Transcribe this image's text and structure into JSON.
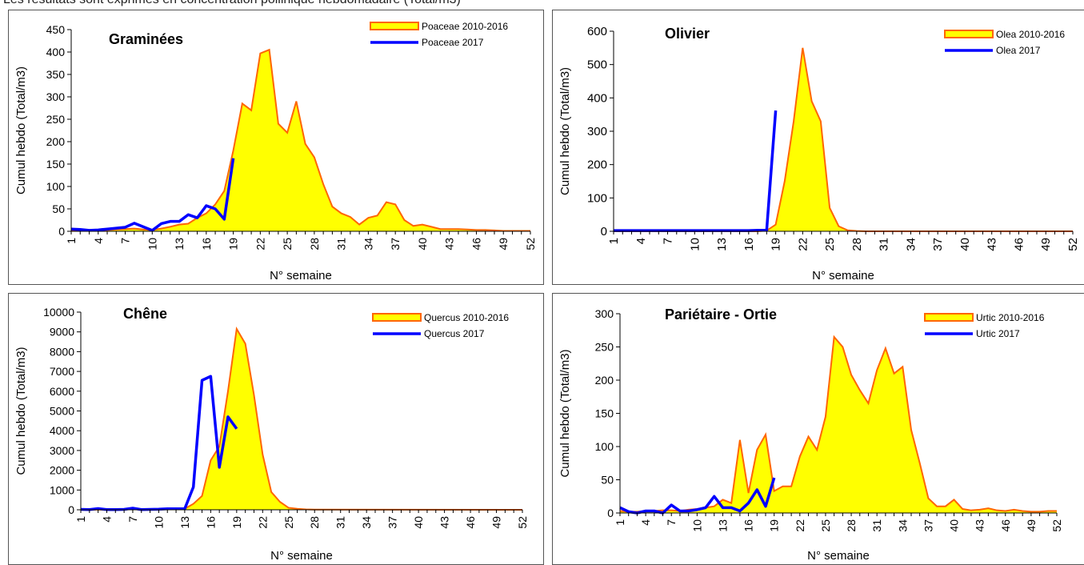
{
  "page": {
    "caption": "Les résultats sont exprimés en concentration pollinique hebdomadaire (Total/m3)"
  },
  "chart_data": [
    {
      "type": "area",
      "title": "Graminées",
      "xlabel": "N° semaine",
      "ylabel": "Cumul hebdo (Total/m3)",
      "ylim": [
        0,
        450
      ],
      "yticks": [
        0,
        50,
        100,
        150,
        200,
        250,
        300,
        350,
        400,
        450
      ],
      "xlim": [
        1,
        52
      ],
      "xticks": [
        1,
        4,
        7,
        10,
        13,
        16,
        19,
        22,
        25,
        28,
        31,
        34,
        37,
        40,
        43,
        46,
        49,
        52
      ],
      "legend_position": "top-right",
      "series": [
        {
          "name": "Poaceae 2010-2016",
          "kind": "area",
          "fill": "#FFFF00",
          "stroke": "#FF6600",
          "x": [
            1,
            2,
            3,
            4,
            5,
            6,
            7,
            8,
            9,
            10,
            11,
            12,
            13,
            14,
            15,
            16,
            17,
            18,
            19,
            20,
            21,
            22,
            23,
            24,
            25,
            26,
            27,
            28,
            29,
            30,
            31,
            32,
            33,
            34,
            35,
            36,
            37,
            38,
            39,
            40,
            41,
            42,
            43,
            44,
            45,
            46,
            47,
            48,
            49,
            50,
            51,
            52
          ],
          "values": [
            2,
            1,
            1,
            2,
            3,
            4,
            5,
            6,
            4,
            3,
            6,
            10,
            15,
            17,
            30,
            40,
            60,
            90,
            180,
            285,
            270,
            397,
            405,
            240,
            220,
            290,
            195,
            165,
            105,
            55,
            40,
            32,
            15,
            30,
            35,
            65,
            60,
            25,
            12,
            15,
            10,
            5,
            5,
            5,
            4,
            3,
            3,
            2,
            1,
            1,
            1,
            1
          ]
        },
        {
          "name": "Poaceae 2017",
          "kind": "line",
          "stroke": "#0000FF",
          "x": [
            1,
            2,
            3,
            4,
            5,
            6,
            7,
            8,
            9,
            10,
            11,
            12,
            13,
            14,
            15,
            16,
            17,
            18,
            19
          ],
          "values": [
            5,
            4,
            2,
            3,
            5,
            7,
            9,
            18,
            10,
            2,
            17,
            22,
            22,
            37,
            30,
            57,
            50,
            27,
            163
          ]
        }
      ]
    },
    {
      "type": "area",
      "title": "Olivier",
      "xlabel": "N° semaine",
      "ylabel": "Cumul hebdo (Total/m3)",
      "ylim": [
        0,
        600
      ],
      "yticks": [
        0,
        100,
        200,
        300,
        400,
        500,
        600
      ],
      "xlim": [
        1,
        52
      ],
      "xticks": [
        1,
        4,
        7,
        10,
        13,
        16,
        19,
        22,
        25,
        28,
        31,
        34,
        37,
        40,
        43,
        46,
        49,
        52
      ],
      "legend_position": "top-right",
      "series": [
        {
          "name": "Olea 2010-2016",
          "kind": "area",
          "fill": "#FFFF00",
          "stroke": "#FF6600",
          "x": [
            1,
            17,
            18,
            19,
            20,
            21,
            22,
            23,
            24,
            25,
            26,
            27,
            28,
            29,
            52
          ],
          "values": [
            0,
            0,
            2,
            20,
            150,
            330,
            550,
            390,
            330,
            70,
            15,
            3,
            1,
            0,
            0
          ]
        },
        {
          "name": "Olea 2017",
          "kind": "line",
          "stroke": "#0000FF",
          "x": [
            1,
            2,
            3,
            4,
            5,
            6,
            7,
            8,
            9,
            10,
            11,
            12,
            13,
            14,
            15,
            16,
            17,
            18,
            19
          ],
          "values": [
            2,
            2,
            2,
            2,
            2,
            2,
            2,
            2,
            2,
            2,
            2,
            2,
            2,
            2,
            2,
            2,
            3,
            3,
            362
          ]
        }
      ]
    },
    {
      "type": "area",
      "title": "Chêne",
      "xlabel": "N° semaine",
      "ylabel": "Cumul hebdo (Total/m3)",
      "ylim": [
        0,
        10000
      ],
      "yticks": [
        0,
        1000,
        2000,
        3000,
        4000,
        5000,
        6000,
        7000,
        8000,
        9000,
        10000
      ],
      "xlim": [
        1,
        52
      ],
      "xticks": [
        1,
        4,
        7,
        10,
        13,
        16,
        19,
        22,
        25,
        28,
        31,
        34,
        37,
        40,
        43,
        46,
        49,
        52
      ],
      "legend_position": "top-right",
      "series": [
        {
          "name": "Quercus 2010-2016",
          "kind": "area",
          "fill": "#FFFF00",
          "stroke": "#FF6600",
          "x": [
            1,
            13,
            14,
            15,
            16,
            17,
            18,
            19,
            20,
            21,
            22,
            23,
            24,
            25,
            26,
            27,
            28,
            52
          ],
          "values": [
            0,
            50,
            300,
            700,
            2500,
            3200,
            6000,
            9150,
            8400,
            5800,
            2800,
            900,
            400,
            100,
            50,
            20,
            10,
            0
          ]
        },
        {
          "name": "Quercus 2017",
          "kind": "line",
          "stroke": "#0000FF",
          "x": [
            1,
            2,
            3,
            4,
            5,
            6,
            7,
            8,
            9,
            10,
            11,
            12,
            13,
            14,
            15,
            16,
            17,
            18,
            19
          ],
          "values": [
            20,
            10,
            60,
            10,
            10,
            20,
            80,
            10,
            20,
            30,
            50,
            50,
            50,
            1150,
            6550,
            6750,
            2150,
            4700,
            4100
          ]
        }
      ]
    },
    {
      "type": "area",
      "title": "Pariétaire - Ortie",
      "xlabel": "N° semaine",
      "ylabel": "Cumul hebdo (Total/m3)",
      "ylim": [
        0,
        300
      ],
      "yticks": [
        0,
        50,
        100,
        150,
        200,
        250,
        300
      ],
      "xlim": [
        1,
        52
      ],
      "xticks": [
        1,
        4,
        7,
        10,
        13,
        16,
        19,
        22,
        25,
        28,
        31,
        34,
        37,
        40,
        43,
        46,
        49,
        52
      ],
      "legend_position": "top-right",
      "series": [
        {
          "name": "Urtic 2010-2016",
          "kind": "area",
          "fill": "#FFFF00",
          "stroke": "#FF6600",
          "x": [
            1,
            2,
            3,
            4,
            5,
            6,
            7,
            8,
            9,
            10,
            11,
            12,
            13,
            14,
            15,
            16,
            17,
            18,
            19,
            20,
            21,
            22,
            23,
            24,
            25,
            26,
            27,
            28,
            29,
            30,
            31,
            32,
            33,
            34,
            35,
            36,
            37,
            38,
            39,
            40,
            41,
            42,
            43,
            44,
            45,
            46,
            47,
            48,
            49,
            50,
            51,
            52
          ],
          "values": [
            3,
            2,
            2,
            3,
            3,
            4,
            4,
            3,
            5,
            6,
            8,
            10,
            20,
            15,
            110,
            30,
            95,
            118,
            33,
            40,
            40,
            85,
            115,
            95,
            145,
            265,
            250,
            208,
            185,
            165,
            215,
            248,
            210,
            220,
            125,
            75,
            22,
            10,
            10,
            20,
            6,
            4,
            5,
            7,
            4,
            3,
            5,
            3,
            2,
            2,
            3,
            3
          ]
        },
        {
          "name": "Urtic 2017",
          "kind": "line",
          "stroke": "#0000FF",
          "x": [
            1,
            2,
            3,
            4,
            5,
            6,
            7,
            8,
            9,
            10,
            11,
            12,
            13,
            14,
            15,
            16,
            17,
            18,
            19
          ],
          "values": [
            8,
            2,
            0,
            3,
            3,
            0,
            12,
            3,
            3,
            5,
            8,
            25,
            8,
            8,
            3,
            15,
            35,
            10,
            53
          ]
        }
      ]
    }
  ]
}
